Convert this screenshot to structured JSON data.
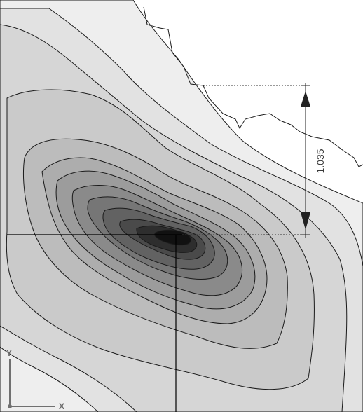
{
  "viewport": {
    "contour_levels": 12,
    "dimension": {
      "value_label": "1.035"
    },
    "triad": {
      "y_label": "Y",
      "x_label": "X"
    },
    "colors": {
      "outline": "#1a1a1a",
      "fill_light": "#f2f2f2",
      "fill_dark": "#111111"
    }
  }
}
